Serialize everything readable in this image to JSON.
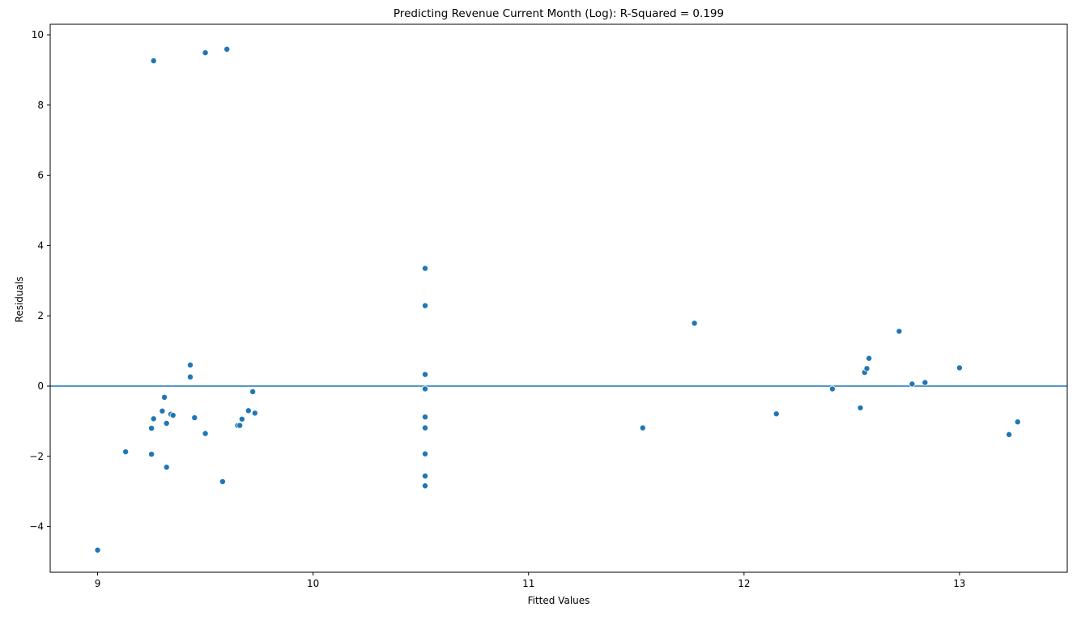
{
  "chart_data": {
    "type": "scatter",
    "title": "Predicting Revenue Current Month (Log): R-Squared = 0.199",
    "xlabel": "Fitted Values",
    "ylabel": "Residuals",
    "xlim": [
      8.78,
      13.5
    ],
    "ylim": [
      -5.3,
      10.3
    ],
    "xticks": [
      9,
      10,
      11,
      12,
      13
    ],
    "yticks": [
      -4,
      -2,
      0,
      2,
      4,
      6,
      8,
      10
    ],
    "ytick_labels": [
      "−4",
      "−2",
      "0",
      "2",
      "4",
      "6",
      "8",
      "10"
    ],
    "reference_line": {
      "y": 0
    },
    "grid": false,
    "marker_color": "#1f77b4",
    "line_color": "#1f77b4",
    "points": [
      {
        "x": 9.0,
        "y": -4.67
      },
      {
        "x": 9.13,
        "y": -1.87
      },
      {
        "x": 9.26,
        "y": 9.26
      },
      {
        "x": 9.25,
        "y": -1.2
      },
      {
        "x": 9.26,
        "y": -0.93
      },
      {
        "x": 9.25,
        "y": -1.94
      },
      {
        "x": 9.3,
        "y": -0.71
      },
      {
        "x": 9.31,
        "y": -0.32
      },
      {
        "x": 9.32,
        "y": -1.06
      },
      {
        "x": 9.32,
        "y": -2.31
      },
      {
        "x": 9.34,
        "y": -0.8
      },
      {
        "x": 9.35,
        "y": -0.83
      },
      {
        "x": 9.43,
        "y": 0.6
      },
      {
        "x": 9.43,
        "y": 0.26
      },
      {
        "x": 9.45,
        "y": -0.9
      },
      {
        "x": 9.5,
        "y": 9.49
      },
      {
        "x": 9.5,
        "y": -1.35
      },
      {
        "x": 9.58,
        "y": -2.72
      },
      {
        "x": 9.6,
        "y": 9.59
      },
      {
        "x": 9.65,
        "y": -1.12
      },
      {
        "x": 9.66,
        "y": -1.12
      },
      {
        "x": 9.67,
        "y": -0.94
      },
      {
        "x": 9.7,
        "y": -0.7
      },
      {
        "x": 9.72,
        "y": -0.16
      },
      {
        "x": 9.73,
        "y": -0.77
      },
      {
        "x": 10.52,
        "y": 3.35
      },
      {
        "x": 10.52,
        "y": 2.29
      },
      {
        "x": 10.52,
        "y": 0.33
      },
      {
        "x": 10.52,
        "y": -0.08
      },
      {
        "x": 10.52,
        "y": -0.88
      },
      {
        "x": 10.52,
        "y": -1.19
      },
      {
        "x": 10.52,
        "y": -1.93
      },
      {
        "x": 10.52,
        "y": -2.56
      },
      {
        "x": 10.52,
        "y": -2.84
      },
      {
        "x": 11.53,
        "y": -1.19
      },
      {
        "x": 11.77,
        "y": 1.79
      },
      {
        "x": 12.15,
        "y": -0.79
      },
      {
        "x": 12.41,
        "y": -0.08
      },
      {
        "x": 12.54,
        "y": -0.62
      },
      {
        "x": 12.56,
        "y": 0.39
      },
      {
        "x": 12.57,
        "y": 0.5
      },
      {
        "x": 12.58,
        "y": 0.79
      },
      {
        "x": 12.72,
        "y": 1.56
      },
      {
        "x": 12.78,
        "y": 0.06
      },
      {
        "x": 12.84,
        "y": 0.1
      },
      {
        "x": 13.0,
        "y": 0.52
      },
      {
        "x": 13.23,
        "y": -1.38
      },
      {
        "x": 13.27,
        "y": -1.02
      }
    ]
  }
}
